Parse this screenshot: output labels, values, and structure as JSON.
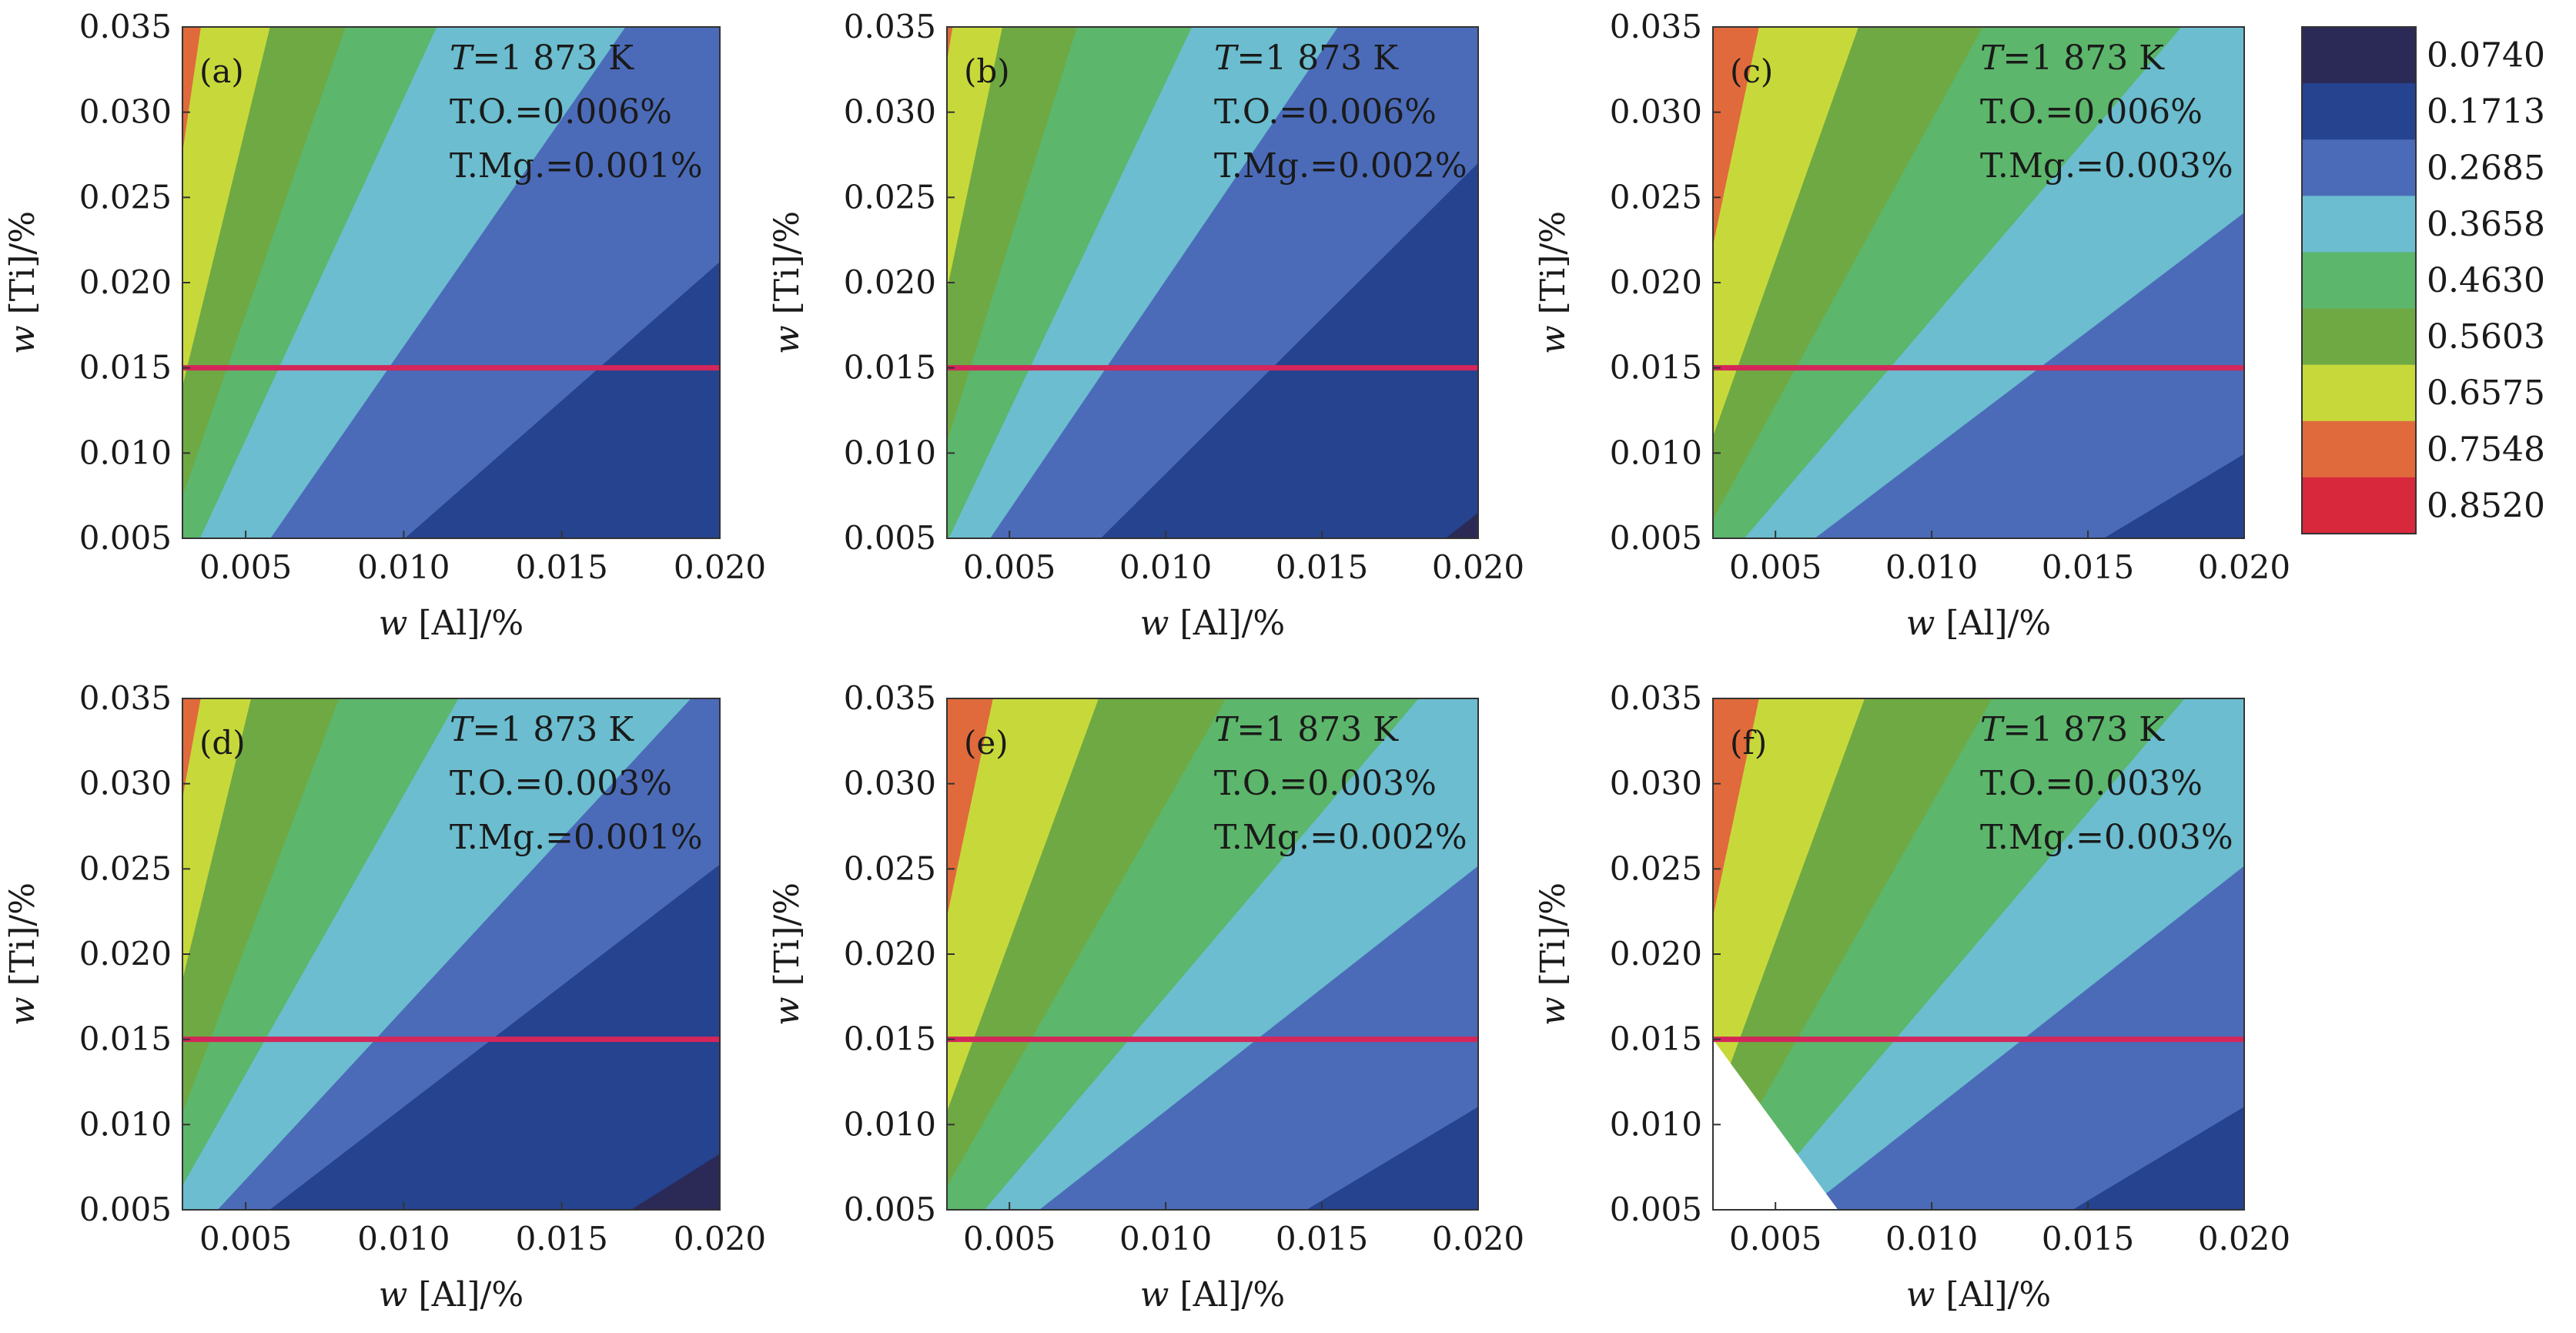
{
  "colors": {
    "levels": [
      "#2b2a57",
      "#25438f",
      "#4b6bb9",
      "#6bbdcf",
      "#5cb66b",
      "#6fa944",
      "#c7d93a",
      "#e06a3c",
      "#d8283c"
    ],
    "boundary_line": "#d4265a",
    "background": "#ffffff"
  },
  "colorbar": {
    "tick_labels": [
      "0.0740",
      "0.1713",
      "0.2685",
      "0.3658",
      "0.4630",
      "0.5603",
      "0.6575",
      "0.7548",
      "0.8520"
    ]
  },
  "chart_data": [
    {
      "type": "heatmap",
      "panel": "(a)",
      "annotation": [
        "T=1 873 K",
        "T.O.=0.006%",
        "T.Mg.=0.001%"
      ],
      "xlabel": "w [Al]/%",
      "ylabel": "w [Ti]/%",
      "x_ticks": [
        "0.005",
        "0.010",
        "0.015",
        "0.020"
      ],
      "y_ticks": [
        "0.005",
        "0.010",
        "0.015",
        "0.020",
        "0.025",
        "0.030",
        "0.035"
      ],
      "xlim": [
        0.003,
        0.02
      ],
      "ylim": [
        0.005,
        0.035
      ],
      "reference_line_y": 0.015,
      "contour_boundaries": [
        {
          "x_at_bottom": 0.0099,
          "x_at_top": 0.0286
        },
        {
          "x_at_bottom": 0.0057,
          "x_at_top": 0.0171
        },
        {
          "x_at_bottom": 0.0035,
          "x_at_top": 0.0111
        },
        {
          "x_at_bottom": 0.0025,
          "x_at_top": 0.0082
        },
        {
          "x_at_bottom": 0.0018,
          "x_at_top": 0.0058
        },
        {
          "x_at_bottom": 0.0012,
          "x_at_top": 0.0036
        }
      ]
    },
    {
      "type": "heatmap",
      "panel": "(b)",
      "annotation": [
        "T=1 873 K",
        "T.O.=0.006%",
        "T.Mg.=0.002%"
      ],
      "xlabel": "w [Al]/%",
      "ylabel": "w [Ti]/%",
      "x_ticks": [
        "0.005",
        "0.010",
        "0.015",
        "0.020"
      ],
      "y_ticks": [
        "0.005",
        "0.010",
        "0.015",
        "0.020",
        "0.025",
        "0.030",
        "0.035"
      ],
      "xlim": [
        0.003,
        0.02
      ],
      "ylim": [
        0.005,
        0.035
      ],
      "reference_line_y": 0.015,
      "contour_boundaries": [
        {
          "x_at_bottom": 0.0188,
          "x_at_top": 0.04
        },
        {
          "x_at_bottom": 0.0078,
          "x_at_top": 0.0245
        },
        {
          "x_at_bottom": 0.0043,
          "x_at_top": 0.0156
        },
        {
          "x_at_bottom": 0.003,
          "x_at_top": 0.0109
        },
        {
          "x_at_bottom": 0.002,
          "x_at_top": 0.0072
        },
        {
          "x_at_bottom": 0.0013,
          "x_at_top": 0.0048
        },
        {
          "x_at_bottom": 0.0005,
          "x_at_top": 0.0032
        }
      ]
    },
    {
      "type": "heatmap",
      "panel": "(c)",
      "annotation": [
        "T=1 873 K",
        "T.O.=0.006%",
        "T.Mg.=0.003%"
      ],
      "xlabel": "w [Al]/%",
      "ylabel": "w [Ti]/%",
      "x_ticks": [
        "0.005",
        "0.010",
        "0.015",
        "0.020"
      ],
      "y_ticks": [
        "0.005",
        "0.010",
        "0.015",
        "0.020",
        "0.025",
        "0.030",
        "0.035"
      ],
      "xlim": [
        0.003,
        0.02
      ],
      "ylim": [
        0.005,
        0.035
      ],
      "reference_line_y": 0.015,
      "contour_boundaries": [
        {
          "x_at_bottom": 0.0153,
          "x_at_top": 0.043
        },
        {
          "x_at_bottom": 0.0061,
          "x_at_top": 0.028
        },
        {
          "x_at_bottom": 0.0039,
          "x_at_top": 0.0181
        },
        {
          "x_at_bottom": 0.0026,
          "x_at_top": 0.0117
        },
        {
          "x_at_bottom": 0.0018,
          "x_at_top": 0.0077
        },
        {
          "x_at_bottom": 0.001,
          "x_at_top": 0.0045
        }
      ]
    },
    {
      "type": "heatmap",
      "panel": "(d)",
      "annotation": [
        "T=1 873 K",
        "T.O.=0.003%",
        "T.Mg.=0.001%"
      ],
      "xlabel": "w [Al]/%",
      "ylabel": "w [Ti]/%",
      "x_ticks": [
        "0.005",
        "0.010",
        "0.015",
        "0.020"
      ],
      "y_ticks": [
        "0.005",
        "0.010",
        "0.015",
        "0.020",
        "0.025",
        "0.030",
        "0.035"
      ],
      "xlim": [
        0.003,
        0.02
      ],
      "ylim": [
        0.005,
        0.035
      ],
      "reference_line_y": 0.015,
      "contour_boundaries": [
        {
          "x_at_bottom": 0.017,
          "x_at_top": 0.043
        },
        {
          "x_at_bottom": 0.0056,
          "x_at_top": 0.027
        },
        {
          "x_at_bottom": 0.004,
          "x_at_top": 0.0192
        },
        {
          "x_at_bottom": 0.0025,
          "x_at_top": 0.0118
        },
        {
          "x_at_bottom": 0.0018,
          "x_at_top": 0.008
        },
        {
          "x_at_bottom": 0.0012,
          "x_at_top": 0.0052
        },
        {
          "x_at_bottom": 0.0006,
          "x_at_top": 0.0036
        }
      ]
    },
    {
      "type": "heatmap",
      "panel": "(e)",
      "annotation": [
        "T=1 873 K",
        "T.O.=0.003%",
        "T.Mg.=0.002%"
      ],
      "xlabel": "w [Al]/%",
      "ylabel": "w [Ti]/%",
      "x_ticks": [
        "0.005",
        "0.010",
        "0.015",
        "0.020"
      ],
      "y_ticks": [
        "0.005",
        "0.010",
        "0.015",
        "0.020",
        "0.025",
        "0.030",
        "0.035"
      ],
      "xlim": [
        0.003,
        0.02
      ],
      "ylim": [
        0.005,
        0.035
      ],
      "reference_line_y": 0.015,
      "contour_boundaries": [
        {
          "x_at_bottom": 0.0143,
          "x_at_top": 0.042
        },
        {
          "x_at_bottom": 0.0058,
          "x_at_top": 0.027
        },
        {
          "x_at_bottom": 0.0041,
          "x_at_top": 0.0182
        },
        {
          "x_at_bottom": 0.0025,
          "x_at_top": 0.012
        },
        {
          "x_at_bottom": 0.0018,
          "x_at_top": 0.0079
        },
        {
          "x_at_bottom": 0.001,
          "x_at_top": 0.0045
        }
      ]
    },
    {
      "type": "heatmap",
      "panel": "(f)",
      "annotation": [
        "T=1 873 K",
        "T.O.=0.003%",
        "T.Mg.=0.003%"
      ],
      "xlabel": "w [Al]/%",
      "ylabel": "w [Ti]/%",
      "x_ticks": [
        "0.005",
        "0.010",
        "0.015",
        "0.020"
      ],
      "y_ticks": [
        "0.005",
        "0.010",
        "0.015",
        "0.020",
        "0.025",
        "0.030",
        "0.035"
      ],
      "xlim": [
        0.003,
        0.02
      ],
      "ylim": [
        0.005,
        0.035
      ],
      "reference_line_y": 0.015,
      "blank_region": [
        [
          0.003,
          0.005
        ],
        [
          0.003,
          0.015
        ],
        [
          0.007,
          0.005
        ]
      ],
      "contour_boundaries": [
        {
          "x_at_bottom": 0.0143,
          "x_at_top": 0.042
        },
        {
          "x_at_bottom": 0.0058,
          "x_at_top": 0.027
        },
        {
          "x_at_bottom": 0.0041,
          "x_at_top": 0.0182
        },
        {
          "x_at_bottom": 0.0025,
          "x_at_top": 0.012
        },
        {
          "x_at_bottom": 0.0018,
          "x_at_top": 0.0079
        },
        {
          "x_at_bottom": 0.001,
          "x_at_top": 0.0045
        }
      ]
    }
  ]
}
